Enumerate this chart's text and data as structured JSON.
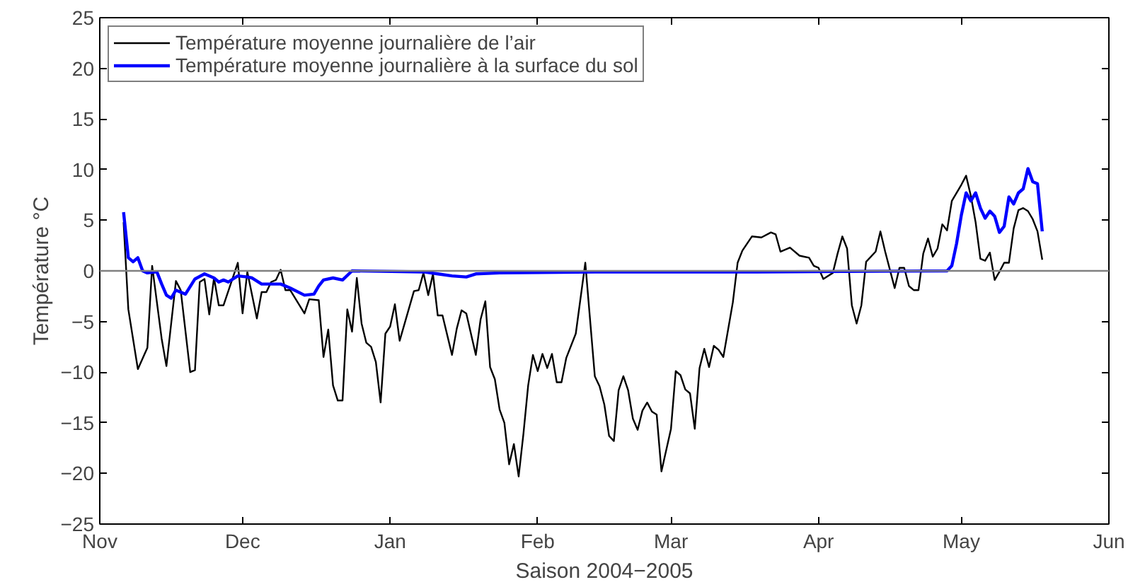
{
  "chart_data": {
    "type": "line",
    "xlabel": "Saison 2004−2005",
    "ylabel": "Température °C",
    "xlim": [
      "2004-11-01",
      "2005-06-01"
    ],
    "xticks": [
      {
        "value": "2004-11-01",
        "label": "Nov"
      },
      {
        "value": "2004-12-01",
        "label": "Dec"
      },
      {
        "value": "2005-01-01",
        "label": "Jan"
      },
      {
        "value": "2005-02-01",
        "label": "Feb"
      },
      {
        "value": "2005-03-01",
        "label": "Mar"
      },
      {
        "value": "2005-04-01",
        "label": "Apr"
      },
      {
        "value": "2005-05-01",
        "label": "May"
      },
      {
        "value": "2005-06-01",
        "label": "Jun"
      }
    ],
    "ylim": [
      -25,
      25
    ],
    "yticks": [
      -25,
      -20,
      -15,
      -10,
      -5,
      0,
      5,
      10,
      15,
      20,
      25
    ],
    "grid": false,
    "legend": "top left",
    "line_style": "solid",
    "ref_lines": [
      {
        "axis": "y",
        "value": 0,
        "color": "#808080"
      }
    ],
    "series": [
      {
        "name": "Température moyenne journalière de l’air",
        "color": "#000000",
        "x": [
          "2004-11-06",
          "2004-11-07",
          "2004-11-09",
          "2004-11-11",
          "2004-11-12",
          "2004-11-14",
          "2004-11-15",
          "2004-11-17",
          "2004-11-18",
          "2004-11-20",
          "2004-11-21",
          "2004-11-22",
          "2004-11-23",
          "2004-11-24",
          "2004-11-25",
          "2004-11-26",
          "2004-11-27",
          "2004-11-30",
          "2004-12-01",
          "2004-12-02",
          "2004-12-04",
          "2004-12-05",
          "2004-12-06",
          "2004-12-07",
          "2004-12-08",
          "2004-12-09",
          "2004-12-10",
          "2004-12-11",
          "2004-12-14",
          "2004-12-15",
          "2004-12-17",
          "2004-12-18",
          "2004-12-19",
          "2004-12-20",
          "2004-12-21",
          "2004-12-22",
          "2004-12-23",
          "2004-12-24",
          "2004-12-25",
          "2004-12-26",
          "2004-12-27",
          "2004-12-28",
          "2004-12-29",
          "2004-12-30",
          "2004-12-31",
          "2005-01-01",
          "2005-01-02",
          "2005-01-03",
          "2005-01-06",
          "2005-01-07",
          "2005-01-08",
          "2005-01-09",
          "2005-01-10",
          "2005-01-11",
          "2005-01-12",
          "2005-01-14",
          "2005-01-15",
          "2005-01-16",
          "2005-01-17",
          "2005-01-19",
          "2005-01-20",
          "2005-01-21",
          "2005-01-22",
          "2005-01-23",
          "2005-01-24",
          "2005-01-25",
          "2005-01-26",
          "2005-01-27",
          "2005-01-28",
          "2005-01-29",
          "2005-01-30",
          "2005-01-31",
          "2005-02-01",
          "2005-02-02",
          "2005-02-03",
          "2005-02-04",
          "2005-02-05",
          "2005-02-06",
          "2005-02-07",
          "2005-02-09",
          "2005-02-11",
          "2005-02-13",
          "2005-02-14",
          "2005-02-15",
          "2005-02-16",
          "2005-02-17",
          "2005-02-18",
          "2005-02-19",
          "2005-02-20",
          "2005-02-21",
          "2005-02-22",
          "2005-02-23",
          "2005-02-24",
          "2005-02-25",
          "2005-02-26",
          "2005-02-27",
          "2005-03-01",
          "2005-03-02",
          "2005-03-03",
          "2005-03-04",
          "2005-03-05",
          "2005-03-06",
          "2005-03-07",
          "2005-03-08",
          "2005-03-09",
          "2005-03-10",
          "2005-03-11",
          "2005-03-12",
          "2005-03-14",
          "2005-03-15",
          "2005-03-16",
          "2005-03-18",
          "2005-03-20",
          "2005-03-22",
          "2005-03-23",
          "2005-03-24",
          "2005-03-26",
          "2005-03-28",
          "2005-03-29",
          "2005-03-30",
          "2005-03-31",
          "2005-04-01",
          "2005-04-02",
          "2005-04-04",
          "2005-04-05",
          "2005-04-06",
          "2005-04-07",
          "2005-04-08",
          "2005-04-09",
          "2005-04-10",
          "2005-04-11",
          "2005-04-13",
          "2005-04-14",
          "2005-04-15",
          "2005-04-17",
          "2005-04-18",
          "2005-04-19",
          "2005-04-20",
          "2005-04-21",
          "2005-04-22",
          "2005-04-23",
          "2005-04-24",
          "2005-04-25",
          "2005-04-26",
          "2005-04-27",
          "2005-04-28",
          "2005-04-29",
          "2005-05-01",
          "2005-05-02",
          "2005-05-03",
          "2005-05-04",
          "2005-05-05",
          "2005-05-06",
          "2005-05-07",
          "2005-05-08",
          "2005-05-09",
          "2005-05-10",
          "2005-05-11",
          "2005-05-12",
          "2005-05-13",
          "2005-05-14",
          "2005-05-15",
          "2005-05-16",
          "2005-05-17",
          "2005-05-18"
        ],
        "values": [
          4.8,
          -3.8,
          -9.7,
          -7.6,
          0.5,
          -6.7,
          -9.4,
          -1,
          -1.9,
          -10,
          -9.8,
          -1.1,
          -0.8,
          -4.3,
          -0.7,
          -3.4,
          -3.4,
          0.8,
          -4.2,
          -0.1,
          -4.7,
          -2.1,
          -2.1,
          -1.1,
          -0.9,
          0.1,
          -1.9,
          -1.9,
          -4.2,
          -2.8,
          -2.9,
          -8.5,
          -5.8,
          -11.3,
          -12.8,
          -12.8,
          -3.8,
          -6,
          -0.7,
          -5.2,
          -7.1,
          -7.5,
          -9,
          -13,
          -6.2,
          -5.5,
          -3.3,
          -6.9,
          -2,
          -1.9,
          -0.2,
          -2.4,
          -0.3,
          -4.4,
          -4.4,
          -8.3,
          -5.7,
          -3.9,
          -4.2,
          -8.3,
          -4.8,
          -3,
          -9.5,
          -10.7,
          -13.7,
          -15,
          -19.1,
          -17.1,
          -20.3,
          -16.1,
          -11.3,
          -8.3,
          -9.9,
          -8.2,
          -9.6,
          -8.2,
          -11,
          -11,
          -8.6,
          -6.2,
          0.8,
          -10.4,
          -11.4,
          -13.2,
          -16.3,
          -16.8,
          -11.8,
          -10.4,
          -11.8,
          -14.6,
          -15.7,
          -13.8,
          -13,
          -13.9,
          -14.2,
          -19.8,
          -15.6,
          -9.9,
          -10.3,
          -11.7,
          -12.1,
          -15.6,
          -9.6,
          -7.7,
          -9.5,
          -7.4,
          -7.8,
          -8.5,
          -3.1,
          0.8,
          2,
          3.4,
          3.3,
          3.8,
          3.6,
          1.9,
          2.3,
          1.5,
          1.4,
          1.3,
          0.5,
          0.3,
          -0.8,
          -0.2,
          1.7,
          3.4,
          2.2,
          -3.4,
          -5.2,
          -3.4,
          0.9,
          1.9,
          3.9,
          1.9,
          -1.7,
          0.3,
          0.3,
          -1.5,
          -1.9,
          -1.9,
          1.7,
          3.2,
          1.4,
          2.2,
          4.6,
          4,
          6.9,
          8.5,
          9.4,
          7.4,
          4.8,
          1.2,
          1,
          1.8,
          -0.9,
          -0.1,
          0.8,
          0.8,
          4.2,
          6,
          6.2,
          5.9,
          5.1,
          3.9,
          1.1
        ]
      },
      {
        "name": "Température moyenne journalière à la surface du sol",
        "color": "#0000ff",
        "x": [
          "2004-11-06",
          "2004-11-07",
          "2004-11-08",
          "2004-11-09",
          "2004-11-10",
          "2004-11-11",
          "2004-11-13",
          "2004-11-14",
          "2004-11-15",
          "2004-11-16",
          "2004-11-17",
          "2004-11-19",
          "2004-11-21",
          "2004-11-23",
          "2004-11-25",
          "2004-11-26",
          "2004-11-27",
          "2004-11-28",
          "2004-11-30",
          "2004-12-02",
          "2004-12-03",
          "2004-12-05",
          "2004-12-07",
          "2004-12-09",
          "2004-12-11",
          "2004-12-14",
          "2004-12-16",
          "2004-12-17",
          "2004-12-18",
          "2004-12-20",
          "2004-12-22",
          "2004-12-24",
          "2005-01-08",
          "2005-01-11",
          "2005-01-14",
          "2005-01-17",
          "2005-01-19",
          "2005-01-24",
          "2005-02-13",
          "2005-03-19",
          "2005-04-28",
          "2005-04-29",
          "2005-04-30",
          "2005-05-01",
          "2005-05-02",
          "2005-05-03",
          "2005-05-04",
          "2005-05-05",
          "2005-05-06",
          "2005-05-07",
          "2005-05-08",
          "2005-05-09",
          "2005-05-10",
          "2005-05-11",
          "2005-05-12",
          "2005-05-13",
          "2005-05-14",
          "2005-05-15",
          "2005-05-16",
          "2005-05-17",
          "2005-05-18"
        ],
        "values": [
          5.8,
          1.3,
          0.9,
          1.3,
          0,
          -0.2,
          -0.1,
          -1.3,
          -2.4,
          -2.7,
          -1.9,
          -2.3,
          -0.8,
          -0.3,
          -0.7,
          -1.1,
          -0.9,
          -1.1,
          -0.5,
          -0.6,
          -0.7,
          -1.3,
          -1.3,
          -1.3,
          -1.7,
          -2.4,
          -2.3,
          -1.5,
          -0.9,
          -0.7,
          -0.9,
          0,
          -0.1,
          -0.3,
          -0.5,
          -0.6,
          -0.3,
          -0.2,
          -0.1,
          -0.1,
          0,
          0.5,
          2.7,
          5.5,
          7.7,
          6.9,
          7.7,
          6.2,
          5.2,
          5.9,
          5.4,
          3.8,
          4.4,
          7.3,
          6.6,
          7.7,
          8.1,
          10.1,
          8.8,
          8.6,
          3.9
        ]
      }
    ]
  }
}
